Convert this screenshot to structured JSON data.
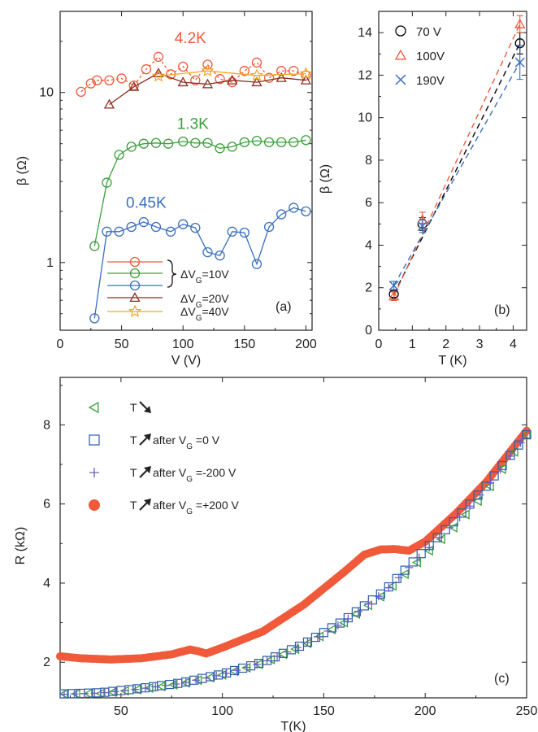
{
  "chart_data": [
    {
      "panel_label": "(a)",
      "type": "line",
      "xlabel": "V (V)",
      "ylabel": "β (Ω)",
      "xlim": [
        0,
        205
      ],
      "ylim": [
        0.4,
        30
      ],
      "y_scale": "log",
      "x_ticks": [
        "0",
        "50",
        "100",
        "150",
        "200"
      ],
      "y_ticks": [
        "1",
        "10"
      ],
      "series": [
        {
          "color": "#f05a3a",
          "marker": "circle",
          "dash": "3,3",
          "x": [
            17,
            25,
            30,
            40,
            50,
            60,
            70,
            80,
            90,
            100,
            110,
            120,
            130,
            140,
            150,
            160,
            170,
            180,
            190,
            200
          ],
          "y": [
            10.1,
            11.3,
            11.8,
            11.8,
            12.1,
            11.0,
            13.7,
            16.2,
            12.8,
            14.2,
            11.8,
            14.6,
            12.0,
            11.5,
            13.4,
            15.0,
            12.2,
            13.4,
            13.4,
            12.6
          ]
        },
        {
          "color": "#3aa03a",
          "marker": "circle",
          "dash": "",
          "x": [
            28,
            38,
            48,
            58,
            68,
            78,
            88,
            100,
            110,
            120,
            130,
            140,
            150,
            160,
            170,
            180,
            190,
            200
          ],
          "y": [
            1.25,
            2.95,
            4.3,
            4.8,
            5.0,
            5.05,
            5.0,
            5.15,
            5.05,
            5.05,
            4.7,
            4.8,
            5.1,
            5.2,
            5.1,
            5.1,
            5.1,
            5.25
          ]
        },
        {
          "color": "#3a6fbf",
          "marker": "circle",
          "dash": "",
          "x": [
            28,
            38,
            48,
            58,
            68,
            78,
            90,
            100,
            110,
            120,
            130,
            140,
            150,
            160,
            170,
            180,
            190,
            200
          ],
          "y": [
            0.47,
            1.52,
            1.52,
            1.62,
            1.73,
            1.62,
            1.52,
            1.68,
            1.6,
            1.15,
            1.1,
            1.52,
            1.5,
            0.98,
            1.62,
            1.92,
            2.1,
            2.0
          ]
        },
        {
          "color": "#8b2e22",
          "marker": "triangle",
          "dash": "",
          "x": [
            40,
            60,
            80,
            100,
            120,
            140,
            160,
            180,
            200
          ],
          "y": [
            8.5,
            10.8,
            13.0,
            11.5,
            11.2,
            11.8,
            11.5,
            12.2,
            11.8
          ]
        },
        {
          "color": "#f5a623",
          "marker": "star",
          "dash": "",
          "x": [
            80,
            120,
            160,
            200
          ],
          "y": [
            12.5,
            13.4,
            12.6,
            12.9
          ]
        }
      ],
      "annotations": [
        {
          "text": "4.2K",
          "x": 106,
          "y": 19.5,
          "color": "#f05a3a"
        },
        {
          "text": "1.3K",
          "x": 108,
          "y": 6.1,
          "color": "#3aa03a"
        },
        {
          "text": "0.45K",
          "x": 70,
          "y": 2.1,
          "color": "#3a6fbf"
        }
      ],
      "legend_labels": [
        "ΔVG=10V",
        "ΔVG=20V",
        "ΔVG=40V"
      ]
    },
    {
      "panel_label": "(b)",
      "type": "scatter",
      "xlabel": "T (K)",
      "ylabel": "β (Ω)",
      "xlim": [
        0,
        4.4
      ],
      "ylim": [
        0,
        15
      ],
      "x_ticks": [
        "0",
        "1",
        "2",
        "3",
        "4"
      ],
      "y_ticks": [
        "0",
        "2",
        "4",
        "6",
        "8",
        "10",
        "12",
        "14"
      ],
      "series": [
        {
          "name": "70 V",
          "color": "#000000",
          "marker": "circle",
          "x": [
            0.45,
            1.3,
            4.2
          ],
          "y": [
            1.7,
            5.0,
            13.5
          ],
          "yerr": [
            0.15,
            0.3,
            0.5
          ],
          "fit": [
            [
              0.45,
              1.7
            ],
            [
              4.2,
              13.5
            ]
          ]
        },
        {
          "name": "100V",
          "color": "#f05a3a",
          "marker": "triangle",
          "x": [
            0.45,
            1.3,
            4.2
          ],
          "y": [
            1.6,
            5.2,
            14.4
          ],
          "yerr": [
            0.2,
            0.35,
            0.4
          ],
          "fit": [
            [
              0.45,
              1.6
            ],
            [
              4.2,
              14.4
            ]
          ]
        },
        {
          "name": "190V",
          "color": "#3a6fbf",
          "marker": "cross",
          "x": [
            0.45,
            1.3,
            4.2
          ],
          "y": [
            2.1,
            4.9,
            12.6
          ],
          "yerr": [
            0.2,
            0.3,
            0.8
          ],
          "fit": [
            [
              0.45,
              2.1
            ],
            [
              4.2,
              12.6
            ]
          ]
        }
      ]
    },
    {
      "panel_label": "(c)",
      "type": "scatter",
      "xlabel": "T(K)",
      "ylabel": "R (kΩ)",
      "xlim": [
        20,
        250
      ],
      "ylim": [
        1.1,
        9.2
      ],
      "x_ticks": [
        "50",
        "100",
        "150",
        "200",
        "250"
      ],
      "y_ticks": [
        "2",
        "4",
        "6",
        "8"
      ],
      "series": [
        {
          "name": "T",
          "arrow": "down",
          "color": "#3aa03a",
          "marker": "triangle-left",
          "step": 6,
          "x": [
            22,
            40,
            60,
            80,
            100,
            120,
            140,
            160,
            180,
            200,
            215,
            230,
            250
          ],
          "y": [
            1.2,
            1.21,
            1.32,
            1.46,
            1.68,
            1.98,
            2.42,
            3.0,
            3.73,
            4.72,
            5.45,
            6.3,
            7.75
          ]
        },
        {
          "name": "T",
          "arrow": "up",
          "suffix": " after VG =0 V",
          "color": "#2a5fa8",
          "marker": "square",
          "step": 4,
          "x": [
            22,
            40,
            60,
            80,
            100,
            120,
            140,
            160,
            180,
            200,
            215,
            230,
            250
          ],
          "y": [
            1.2,
            1.23,
            1.34,
            1.48,
            1.7,
            2.0,
            2.45,
            3.05,
            3.8,
            4.85,
            5.6,
            6.45,
            7.75
          ]
        },
        {
          "name": "T",
          "arrow": "up",
          "suffix": " after VG =-200 V",
          "color": "#6a5fbf",
          "marker": "plus",
          "step": 5,
          "x": [
            22,
            40,
            60,
            80,
            100,
            120,
            140,
            160,
            180,
            200,
            215,
            230,
            250
          ],
          "y": [
            1.19,
            1.22,
            1.33,
            1.47,
            1.69,
            1.99,
            2.44,
            3.02,
            3.78,
            4.8,
            5.55,
            6.4,
            7.75
          ]
        },
        {
          "name": "T",
          "arrow": "up",
          "suffix": " after VG =+200 V",
          "color": "#f05a3a",
          "marker": "dot",
          "step": 1,
          "x": [
            20,
            30,
            45,
            60,
            75,
            84,
            88,
            92,
            100,
            120,
            140,
            160,
            170,
            178,
            185,
            192,
            200,
            215,
            230,
            250
          ],
          "y": [
            2.15,
            2.1,
            2.07,
            2.1,
            2.2,
            2.32,
            2.28,
            2.22,
            2.37,
            2.78,
            3.45,
            4.28,
            4.72,
            4.85,
            4.86,
            4.82,
            5.05,
            5.75,
            6.55,
            7.85
          ]
        }
      ]
    }
  ]
}
